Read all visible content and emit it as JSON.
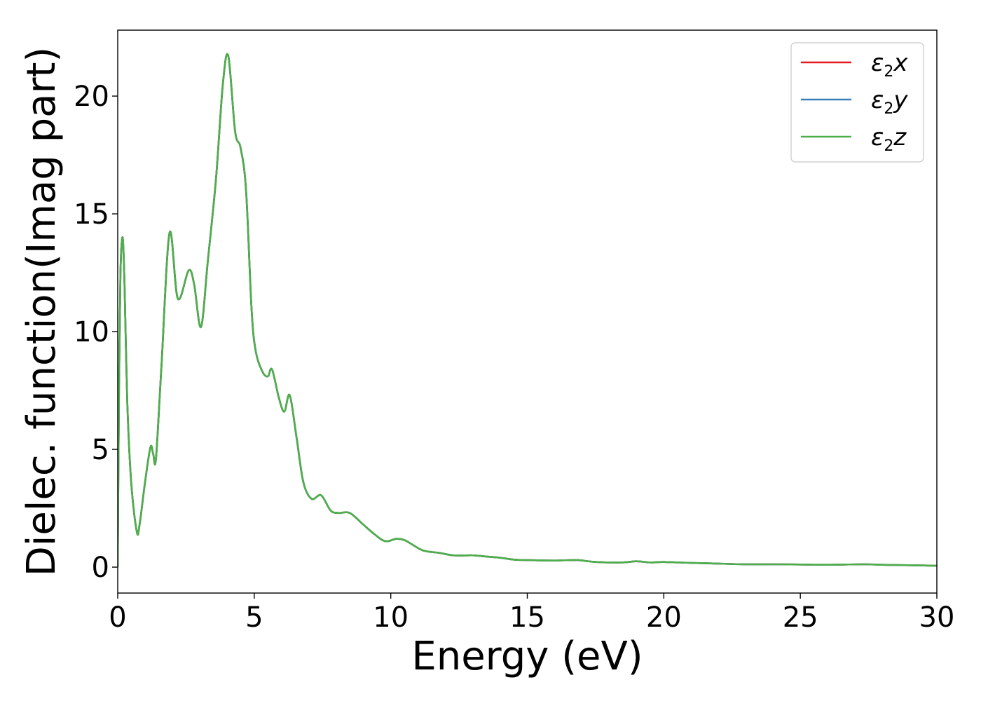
{
  "chart_data": {
    "type": "line",
    "xlabel": "Energy (eV)",
    "ylabel": "Dielec. function(Imag part)",
    "xlim": [
      0,
      30
    ],
    "ylim": [
      -1.1,
      22.8
    ],
    "xticks": [
      0,
      5,
      10,
      15,
      20,
      25,
      30
    ],
    "yticks": [
      0,
      5,
      10,
      15,
      20
    ],
    "grid": false,
    "legend_position": "top-right",
    "x": [
      0,
      0.05,
      0.1,
      0.18,
      0.25,
      0.35,
      0.5,
      0.7,
      0.8,
      1.0,
      1.2,
      1.3,
      1.4,
      1.6,
      1.9,
      2.2,
      2.6,
      2.8,
      3.05,
      3.3,
      3.6,
      3.85,
      4.05,
      4.3,
      4.5,
      4.7,
      4.9,
      5.05,
      5.3,
      5.5,
      5.65,
      5.9,
      6.1,
      6.3,
      6.55,
      6.8,
      7.1,
      7.45,
      7.8,
      8.1,
      8.5,
      9.0,
      9.4,
      9.8,
      10.2,
      10.5,
      10.8,
      11.2,
      11.8,
      12.3,
      13.0,
      13.5,
      14.0,
      14.5,
      15.0,
      16.0,
      16.8,
      17.5,
      18.5,
      19.0,
      19.5,
      20.0,
      21.0,
      22.0,
      23.0,
      24.0,
      25.0,
      26.0,
      27.3,
      28.0,
      29.0,
      30.0
    ],
    "series": [
      {
        "name": "ε2x",
        "color": "#e41a1c",
        "values": [
          0.0,
          8.0,
          12.5,
          14.0,
          12.0,
          7.0,
          3.5,
          1.5,
          1.8,
          3.6,
          5.1,
          4.8,
          4.6,
          8.5,
          14.2,
          11.4,
          12.6,
          12.0,
          10.2,
          13.0,
          16.5,
          20.5,
          21.7,
          18.5,
          17.8,
          16.0,
          11.0,
          9.2,
          8.3,
          8.1,
          8.4,
          7.2,
          6.6,
          7.3,
          5.5,
          3.6,
          2.9,
          3.05,
          2.4,
          2.3,
          2.3,
          1.8,
          1.4,
          1.1,
          1.2,
          1.15,
          0.95,
          0.7,
          0.6,
          0.5,
          0.5,
          0.45,
          0.4,
          0.32,
          0.3,
          0.28,
          0.3,
          0.22,
          0.2,
          0.25,
          0.2,
          0.22,
          0.18,
          0.15,
          0.12,
          0.12,
          0.11,
          0.1,
          0.12,
          0.1,
          0.08,
          0.06
        ]
      },
      {
        "name": "ε2y",
        "color": "#377eb8",
        "values": [
          0.0,
          8.0,
          12.5,
          14.0,
          12.0,
          7.0,
          3.5,
          1.5,
          1.8,
          3.6,
          5.1,
          4.8,
          4.6,
          8.5,
          14.2,
          11.4,
          12.6,
          12.0,
          10.2,
          13.0,
          16.5,
          20.5,
          21.7,
          18.5,
          17.8,
          16.0,
          11.0,
          9.2,
          8.3,
          8.1,
          8.4,
          7.2,
          6.6,
          7.3,
          5.5,
          3.6,
          2.9,
          3.05,
          2.4,
          2.3,
          2.3,
          1.8,
          1.4,
          1.1,
          1.2,
          1.15,
          0.95,
          0.7,
          0.6,
          0.5,
          0.5,
          0.45,
          0.4,
          0.32,
          0.3,
          0.28,
          0.3,
          0.22,
          0.2,
          0.25,
          0.2,
          0.22,
          0.18,
          0.15,
          0.12,
          0.12,
          0.11,
          0.1,
          0.12,
          0.1,
          0.08,
          0.06
        ]
      },
      {
        "name": "ε2z",
        "color": "#4daf4a",
        "values": [
          0.0,
          8.0,
          12.5,
          14.0,
          12.0,
          7.0,
          3.5,
          1.5,
          1.8,
          3.6,
          5.1,
          4.8,
          4.6,
          8.5,
          14.2,
          11.4,
          12.6,
          12.0,
          10.2,
          13.0,
          16.5,
          20.5,
          21.7,
          18.5,
          17.8,
          16.0,
          11.0,
          9.2,
          8.3,
          8.1,
          8.4,
          7.2,
          6.6,
          7.3,
          5.5,
          3.6,
          2.9,
          3.05,
          2.4,
          2.3,
          2.3,
          1.8,
          1.4,
          1.1,
          1.2,
          1.15,
          0.95,
          0.7,
          0.6,
          0.5,
          0.5,
          0.45,
          0.4,
          0.32,
          0.3,
          0.28,
          0.3,
          0.22,
          0.2,
          0.25,
          0.2,
          0.22,
          0.18,
          0.15,
          0.12,
          0.12,
          0.11,
          0.1,
          0.12,
          0.1,
          0.08,
          0.06
        ]
      }
    ]
  }
}
